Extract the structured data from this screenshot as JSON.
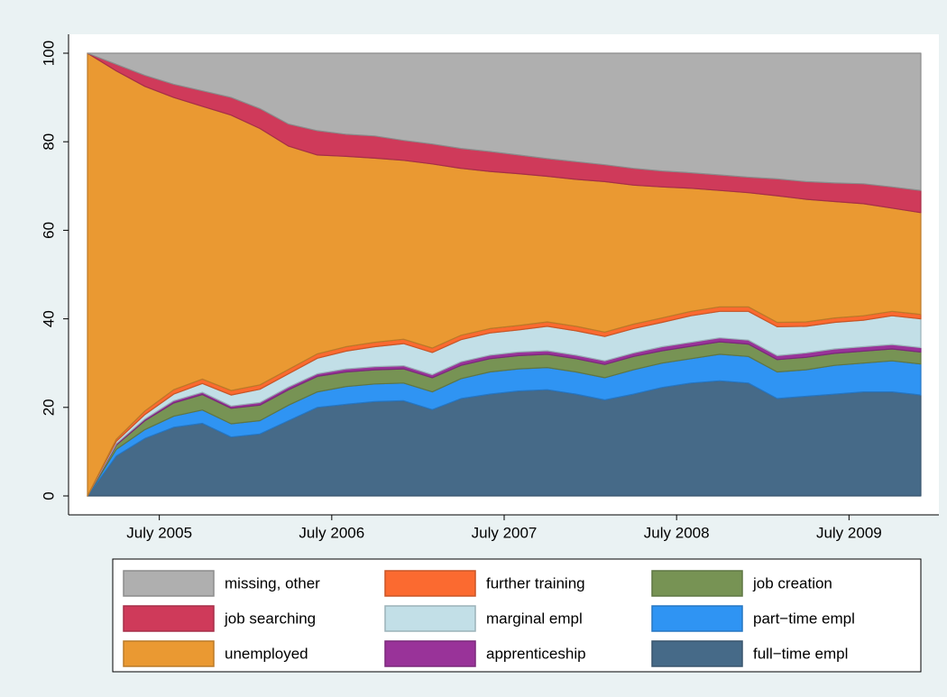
{
  "chart_data": {
    "type": "stacked-area",
    "x": [
      "2005-02",
      "2005-04",
      "2005-06",
      "2005-08",
      "2005-10",
      "2005-12",
      "2006-02",
      "2006-04",
      "2006-06",
      "2006-08",
      "2006-10",
      "2006-12",
      "2007-02",
      "2007-04",
      "2007-06",
      "2007-08",
      "2007-10",
      "2007-12",
      "2008-02",
      "2008-04",
      "2008-06",
      "2008-08",
      "2008-10",
      "2008-12",
      "2009-02",
      "2009-04",
      "2009-06",
      "2009-08",
      "2009-10",
      "2009-12"
    ],
    "xlim": [
      "2005-02",
      "2009-12"
    ],
    "xticks": [
      {
        "value": "2005-07",
        "label": "July 2005"
      },
      {
        "value": "2006-07",
        "label": "July 2006"
      },
      {
        "value": "2007-07",
        "label": "July 2007"
      },
      {
        "value": "2008-07",
        "label": "July 2008"
      },
      {
        "value": "2009-07",
        "label": "July 2009"
      }
    ],
    "ylim": [
      0,
      100
    ],
    "yticks": [
      0,
      20,
      40,
      60,
      80,
      100
    ],
    "series": [
      {
        "name": "full−time empl",
        "color": "#466a88",
        "values": [
          0,
          9,
          13,
          15.5,
          16.4,
          13.3,
          14,
          17,
          20,
          20.7,
          21.3,
          21.5,
          19.5,
          22,
          23,
          23.7,
          24,
          23,
          21.7,
          23,
          24.5,
          25.5,
          26,
          25.5,
          22,
          22.5,
          23,
          23.5,
          23.5,
          22.8
        ]
      },
      {
        "name": "part−time empl",
        "color": "#2f94f3",
        "values": [
          0,
          1.5,
          2,
          2.5,
          3,
          3,
          3,
          3.5,
          3.5,
          4,
          4,
          4,
          4,
          4.5,
          5,
          5,
          5,
          5,
          5,
          5.5,
          5.5,
          5.5,
          6,
          6,
          6,
          6,
          6.5,
          6.5,
          7,
          7
        ]
      },
      {
        "name": "job creation",
        "color": "#779354",
        "values": [
          0,
          1,
          2,
          3,
          3.5,
          3.5,
          3.5,
          3.5,
          3.5,
          3.3,
          3.2,
          3.2,
          3.2,
          3,
          3,
          3,
          3,
          3,
          3,
          3,
          2.8,
          2.8,
          2.8,
          2.8,
          2.8,
          2.8,
          2.7,
          2.7,
          2.7,
          2.7
        ]
      },
      {
        "name": "apprenticeship",
        "color": "#993399",
        "values": [
          0,
          0.3,
          0.4,
          0.5,
          0.5,
          0.5,
          0.6,
          0.6,
          0.6,
          0.7,
          0.7,
          0.7,
          0.7,
          0.8,
          0.8,
          0.8,
          0.8,
          0.8,
          0.8,
          0.8,
          0.9,
          0.9,
          0.9,
          0.9,
          0.9,
          1,
          1,
          1,
          1,
          1
        ]
      },
      {
        "name": "marginal empl",
        "color": "#c2dfe7",
        "values": [
          0,
          0.5,
          1,
          1.5,
          2,
          2.5,
          3,
          3,
          3.5,
          4,
          4.5,
          5,
          5,
          5,
          5,
          5,
          5.5,
          5.5,
          5.5,
          5.5,
          5.5,
          6,
          6,
          6.5,
          6.5,
          6,
          6,
          6,
          6.5,
          6.5
        ]
      },
      {
        "name": "further training",
        "color": "#fb6a30",
        "values": [
          0,
          0.5,
          0.8,
          1,
          1,
          1,
          1,
          1,
          1,
          1,
          1,
          1,
          1,
          1,
          1,
          1,
          1,
          1,
          1,
          1,
          1,
          1,
          1,
          1,
          1,
          1,
          1,
          1,
          1,
          1
        ]
      },
      {
        "name": "unemployed",
        "color": "#ea9932",
        "values": [
          100,
          83.2,
          73.3,
          66,
          61.6,
          62.2,
          57.9,
          50.4,
          44.9,
          43,
          41.6,
          40.4,
          41.6,
          37.7,
          35.5,
          34.3,
          32.9,
          33.2,
          34,
          31.4,
          29.6,
          27.8,
          26.3,
          25.8,
          28.6,
          27.7,
          26.3,
          25.3,
          23.3,
          23
        ]
      },
      {
        "name": "job searching",
        "color": "#cf3a5a",
        "values": [
          0,
          1.5,
          2.5,
          3,
          3.5,
          4,
          4.5,
          5,
          5.5,
          5,
          5,
          4.5,
          4.5,
          4.5,
          4.5,
          4.2,
          4,
          4,
          3.8,
          3.8,
          3.6,
          3.5,
          3.5,
          3.5,
          3.8,
          4,
          4.2,
          4.5,
          4.8,
          5
        ]
      },
      {
        "name": "missing, other",
        "color": "#afafaf",
        "values": [
          0,
          2.5,
          5,
          7,
          8.5,
          10,
          12.5,
          16,
          17.5,
          18.3,
          18.7,
          19.7,
          20.5,
          21.5,
          22.2,
          23,
          23.8,
          24.5,
          25.2,
          26,
          26.6,
          27,
          27.5,
          28,
          28.4,
          29,
          29.3,
          29.5,
          30.2,
          31
        ]
      }
    ]
  }
}
